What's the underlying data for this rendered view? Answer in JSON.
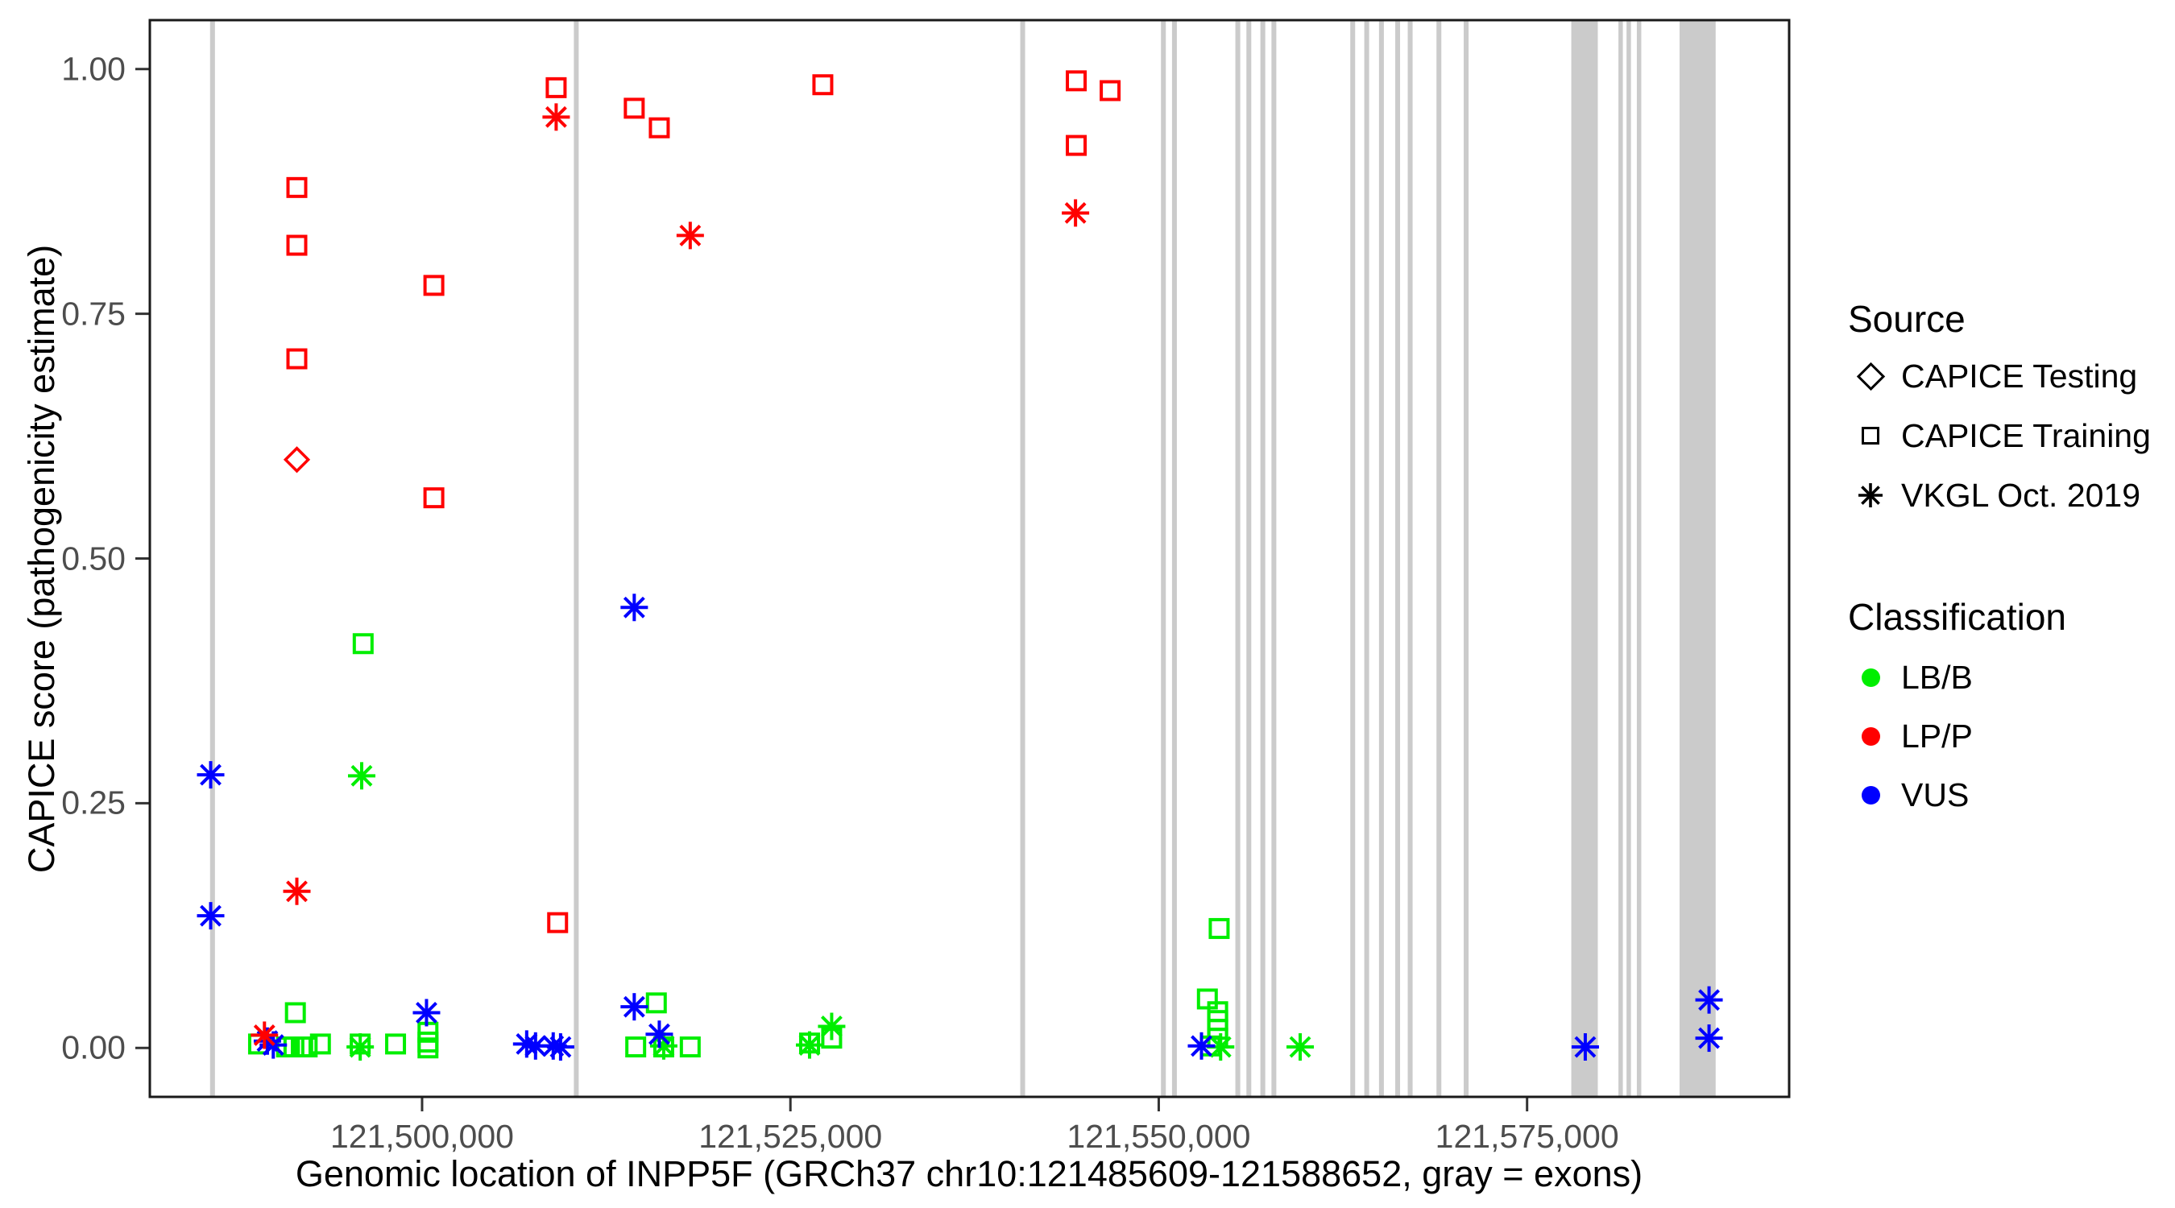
{
  "chart_data": {
    "type": "scatter",
    "title": "",
    "xlabel": "Genomic location of INPP5F (GRCh37 chr10:121485609-121588652, gray = exons)",
    "ylabel": "CAPICE score (pathogenicity estimate)",
    "x_domain": [
      121481521,
      121592787
    ],
    "y_domain": [
      -0.05,
      1.05
    ],
    "x_ticks": [
      {
        "value": 121500000,
        "label": "121,500,000"
      },
      {
        "value": 121525000,
        "label": "121,525,000"
      },
      {
        "value": 121550000,
        "label": "121,550,000"
      },
      {
        "value": 121575000,
        "label": "121,575,000"
      }
    ],
    "y_ticks": [
      {
        "value": 0.0,
        "label": "0.00"
      },
      {
        "value": 0.25,
        "label": "0.25"
      },
      {
        "value": 0.5,
        "label": "0.50"
      },
      {
        "value": 0.75,
        "label": "0.75"
      },
      {
        "value": 1.0,
        "label": "1.00"
      }
    ],
    "grid": false,
    "exon_color": "#cbcbcb",
    "exons_note": "gray vertical bands = exons, genomic start/end (bp)",
    "exons": [
      [
        121485609,
        121485940
      ],
      [
        121510300,
        121510630
      ],
      [
        121540600,
        121540930
      ],
      [
        121550150,
        121550480
      ],
      [
        121550900,
        121551230
      ],
      [
        121555200,
        121555530
      ],
      [
        121555950,
        121556280
      ],
      [
        121556900,
        121557230
      ],
      [
        121557650,
        121557980
      ],
      [
        121563000,
        121563330
      ],
      [
        121563950,
        121564280
      ],
      [
        121564950,
        121565280
      ],
      [
        121566050,
        121566380
      ],
      [
        121566900,
        121567230
      ],
      [
        121568850,
        121569180
      ],
      [
        121570700,
        121571030
      ],
      [
        121578000,
        121579800
      ],
      [
        121581200,
        121581500
      ],
      [
        121581750,
        121582050
      ],
      [
        121582450,
        121582750
      ],
      [
        121585350,
        121587800
      ]
    ],
    "shape_legend": {
      "diamond": "CAPICE Testing",
      "square": "CAPICE Training",
      "asterisk": "VKGL Oct. 2019"
    },
    "series": [
      {
        "name": "LB/B",
        "color": "#00ee00",
        "points": [
          {
            "pos": 121496000,
            "score": 0.413,
            "shape": "square"
          },
          {
            "pos": 121491400,
            "score": 0.036,
            "shape": "square"
          },
          {
            "pos": 121488900,
            "score": 0.004,
            "shape": "square"
          },
          {
            "pos": 121490800,
            "score": 0.001,
            "shape": "square"
          },
          {
            "pos": 121491300,
            "score": 0.001,
            "shape": "square"
          },
          {
            "pos": 121491800,
            "score": 0.001,
            "shape": "square"
          },
          {
            "pos": 121492200,
            "score": 0.001,
            "shape": "square"
          },
          {
            "pos": 121493100,
            "score": 0.004,
            "shape": "square"
          },
          {
            "pos": 121495800,
            "score": 0.004,
            "shape": "square"
          },
          {
            "pos": 121498200,
            "score": 0.004,
            "shape": "square"
          },
          {
            "pos": 121500400,
            "score": 0.016,
            "shape": "square"
          },
          {
            "pos": 121500400,
            "score": 0.006,
            "shape": "square"
          },
          {
            "pos": 121500400,
            "score": 0.0,
            "shape": "square"
          },
          {
            "pos": 121514500,
            "score": 0.001,
            "shape": "square"
          },
          {
            "pos": 121515900,
            "score": 0.046,
            "shape": "square"
          },
          {
            "pos": 121516400,
            "score": 0.001,
            "shape": "square"
          },
          {
            "pos": 121518200,
            "score": 0.001,
            "shape": "square"
          },
          {
            "pos": 121526300,
            "score": 0.005,
            "shape": "square"
          },
          {
            "pos": 121527800,
            "score": 0.01,
            "shape": "square"
          },
          {
            "pos": 121554100,
            "score": 0.122,
            "shape": "square"
          },
          {
            "pos": 121553300,
            "score": 0.05,
            "shape": "square"
          },
          {
            "pos": 121554000,
            "score": 0.037,
            "shape": "square"
          },
          {
            "pos": 121554000,
            "score": 0.028,
            "shape": "square"
          },
          {
            "pos": 121554000,
            "score": 0.019,
            "shape": "square"
          },
          {
            "pos": 121554000,
            "score": 0.01,
            "shape": "square"
          },
          {
            "pos": 121553500,
            "score": 0.002,
            "shape": "square"
          },
          {
            "pos": 121495900,
            "score": 0.278,
            "shape": "asterisk"
          },
          {
            "pos": 121495800,
            "score": 0.001,
            "shape": "asterisk"
          },
          {
            "pos": 121516400,
            "score": 0.002,
            "shape": "asterisk"
          },
          {
            "pos": 121526300,
            "score": 0.003,
            "shape": "asterisk"
          },
          {
            "pos": 121527800,
            "score": 0.022,
            "shape": "asterisk"
          },
          {
            "pos": 121554200,
            "score": 0.001,
            "shape": "asterisk"
          },
          {
            "pos": 121559600,
            "score": 0.001,
            "shape": "asterisk"
          }
        ]
      },
      {
        "name": "VUS",
        "color": "#0000ff",
        "points": [
          {
            "pos": 121485650,
            "score": 0.279,
            "shape": "asterisk"
          },
          {
            "pos": 121485650,
            "score": 0.135,
            "shape": "asterisk"
          },
          {
            "pos": 121489500,
            "score": 0.007,
            "shape": "asterisk"
          },
          {
            "pos": 121489900,
            "score": 0.003,
            "shape": "asterisk"
          },
          {
            "pos": 121500300,
            "score": 0.036,
            "shape": "asterisk"
          },
          {
            "pos": 121507100,
            "score": 0.004,
            "shape": "asterisk"
          },
          {
            "pos": 121507700,
            "score": 0.002,
            "shape": "asterisk"
          },
          {
            "pos": 121508900,
            "score": 0.002,
            "shape": "asterisk"
          },
          {
            "pos": 121509400,
            "score": 0.001,
            "shape": "asterisk"
          },
          {
            "pos": 121514400,
            "score": 0.45,
            "shape": "asterisk"
          },
          {
            "pos": 121514400,
            "score": 0.042,
            "shape": "asterisk"
          },
          {
            "pos": 121516100,
            "score": 0.014,
            "shape": "asterisk"
          },
          {
            "pos": 121552900,
            "score": 0.002,
            "shape": "asterisk"
          },
          {
            "pos": 121578950,
            "score": 0.001,
            "shape": "asterisk"
          },
          {
            "pos": 121587350,
            "score": 0.049,
            "shape": "asterisk"
          },
          {
            "pos": 121587350,
            "score": 0.01,
            "shape": "asterisk"
          }
        ]
      },
      {
        "name": "LP/P",
        "color": "#ff0000",
        "points": [
          {
            "pos": 121491500,
            "score": 0.879,
            "shape": "square"
          },
          {
            "pos": 121491500,
            "score": 0.82,
            "shape": "square"
          },
          {
            "pos": 121491500,
            "score": 0.704,
            "shape": "square"
          },
          {
            "pos": 121491500,
            "score": 0.601,
            "shape": "diamond"
          },
          {
            "pos": 121491500,
            "score": 0.16,
            "shape": "asterisk"
          },
          {
            "pos": 121489300,
            "score": 0.013,
            "shape": "asterisk"
          },
          {
            "pos": 121500800,
            "score": 0.779,
            "shape": "square"
          },
          {
            "pos": 121500800,
            "score": 0.562,
            "shape": "square"
          },
          {
            "pos": 121509100,
            "score": 0.981,
            "shape": "square"
          },
          {
            "pos": 121509100,
            "score": 0.951,
            "shape": "asterisk"
          },
          {
            "pos": 121509200,
            "score": 0.128,
            "shape": "square"
          },
          {
            "pos": 121514400,
            "score": 0.96,
            "shape": "square"
          },
          {
            "pos": 121516100,
            "score": 0.94,
            "shape": "square"
          },
          {
            "pos": 121518200,
            "score": 0.83,
            "shape": "asterisk"
          },
          {
            "pos": 121527200,
            "score": 0.984,
            "shape": "square"
          },
          {
            "pos": 121544400,
            "score": 0.988,
            "shape": "square"
          },
          {
            "pos": 121546700,
            "score": 0.978,
            "shape": "square"
          },
          {
            "pos": 121544400,
            "score": 0.922,
            "shape": "square"
          },
          {
            "pos": 121544350,
            "score": 0.853,
            "shape": "asterisk"
          }
        ]
      }
    ],
    "legend": {
      "source": {
        "title": "Source",
        "items": [
          {
            "shape": "diamond",
            "label": "CAPICE Testing"
          },
          {
            "shape": "square",
            "label": "CAPICE Training"
          },
          {
            "shape": "asterisk",
            "label": "VKGL Oct. 2019"
          }
        ]
      },
      "classification": {
        "title": "Classification",
        "items": [
          {
            "label": "LB/B",
            "color": "#00ee00"
          },
          {
            "label": "LP/P",
            "color": "#ff0000"
          },
          {
            "label": "VUS",
            "color": "#0000ff"
          }
        ]
      }
    },
    "style": {
      "panel_border_color": "#1a1a1a",
      "tick_color": "#333333",
      "tick_label_color": "#4d4d4d",
      "background": "#ffffff"
    }
  }
}
